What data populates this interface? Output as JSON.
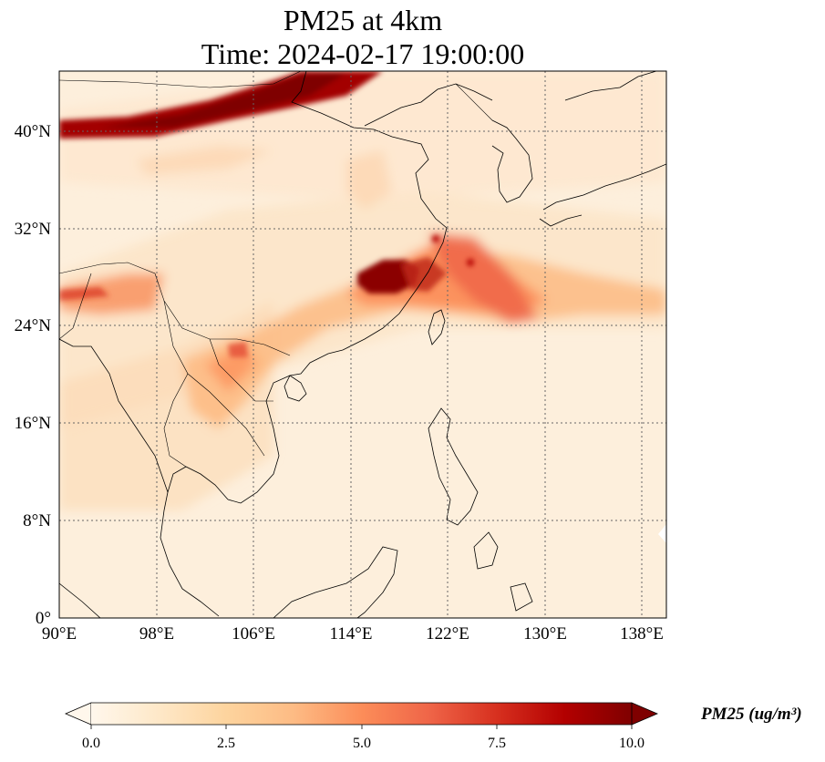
{
  "title": {
    "line1": "PM25 at 4km",
    "line2": "Time: 2024-02-17 19:00:00"
  },
  "map": {
    "extent": {
      "lon": [
        90,
        140
      ],
      "lat": [
        0,
        44
      ]
    },
    "lon_ticks": [
      90,
      98,
      106,
      114,
      122,
      130,
      138
    ],
    "lat_ticks": [
      0,
      8,
      16,
      24,
      32,
      40
    ],
    "lon_labels": [
      "90°E",
      "98°E",
      "106°E",
      "114°E",
      "122°E",
      "130°E",
      "138°E"
    ],
    "lat_labels": [
      "0°",
      "8°N",
      "16°N",
      "24°N",
      "32°N",
      "40°N"
    ],
    "gridlines": true,
    "gridline_style": "dotted"
  },
  "colorbar": {
    "label": "PM25 (ug/m$^{3}$)",
    "label_display": "PM25 (ug/m³)",
    "ticks": [
      0.0,
      2.5,
      5.0,
      7.5,
      10.0
    ],
    "tick_labels": [
      "0.0",
      "2.5",
      "5.0",
      "7.5",
      "10.0"
    ],
    "range": [
      0,
      10
    ],
    "extend": "both",
    "colormap": "OrRd",
    "colors": [
      "#fff7ec",
      "#fee8c8",
      "#fdd49e",
      "#fdbb84",
      "#fc8d59",
      "#ef6548",
      "#d7301f",
      "#b30000",
      "#7f0000"
    ]
  }
}
